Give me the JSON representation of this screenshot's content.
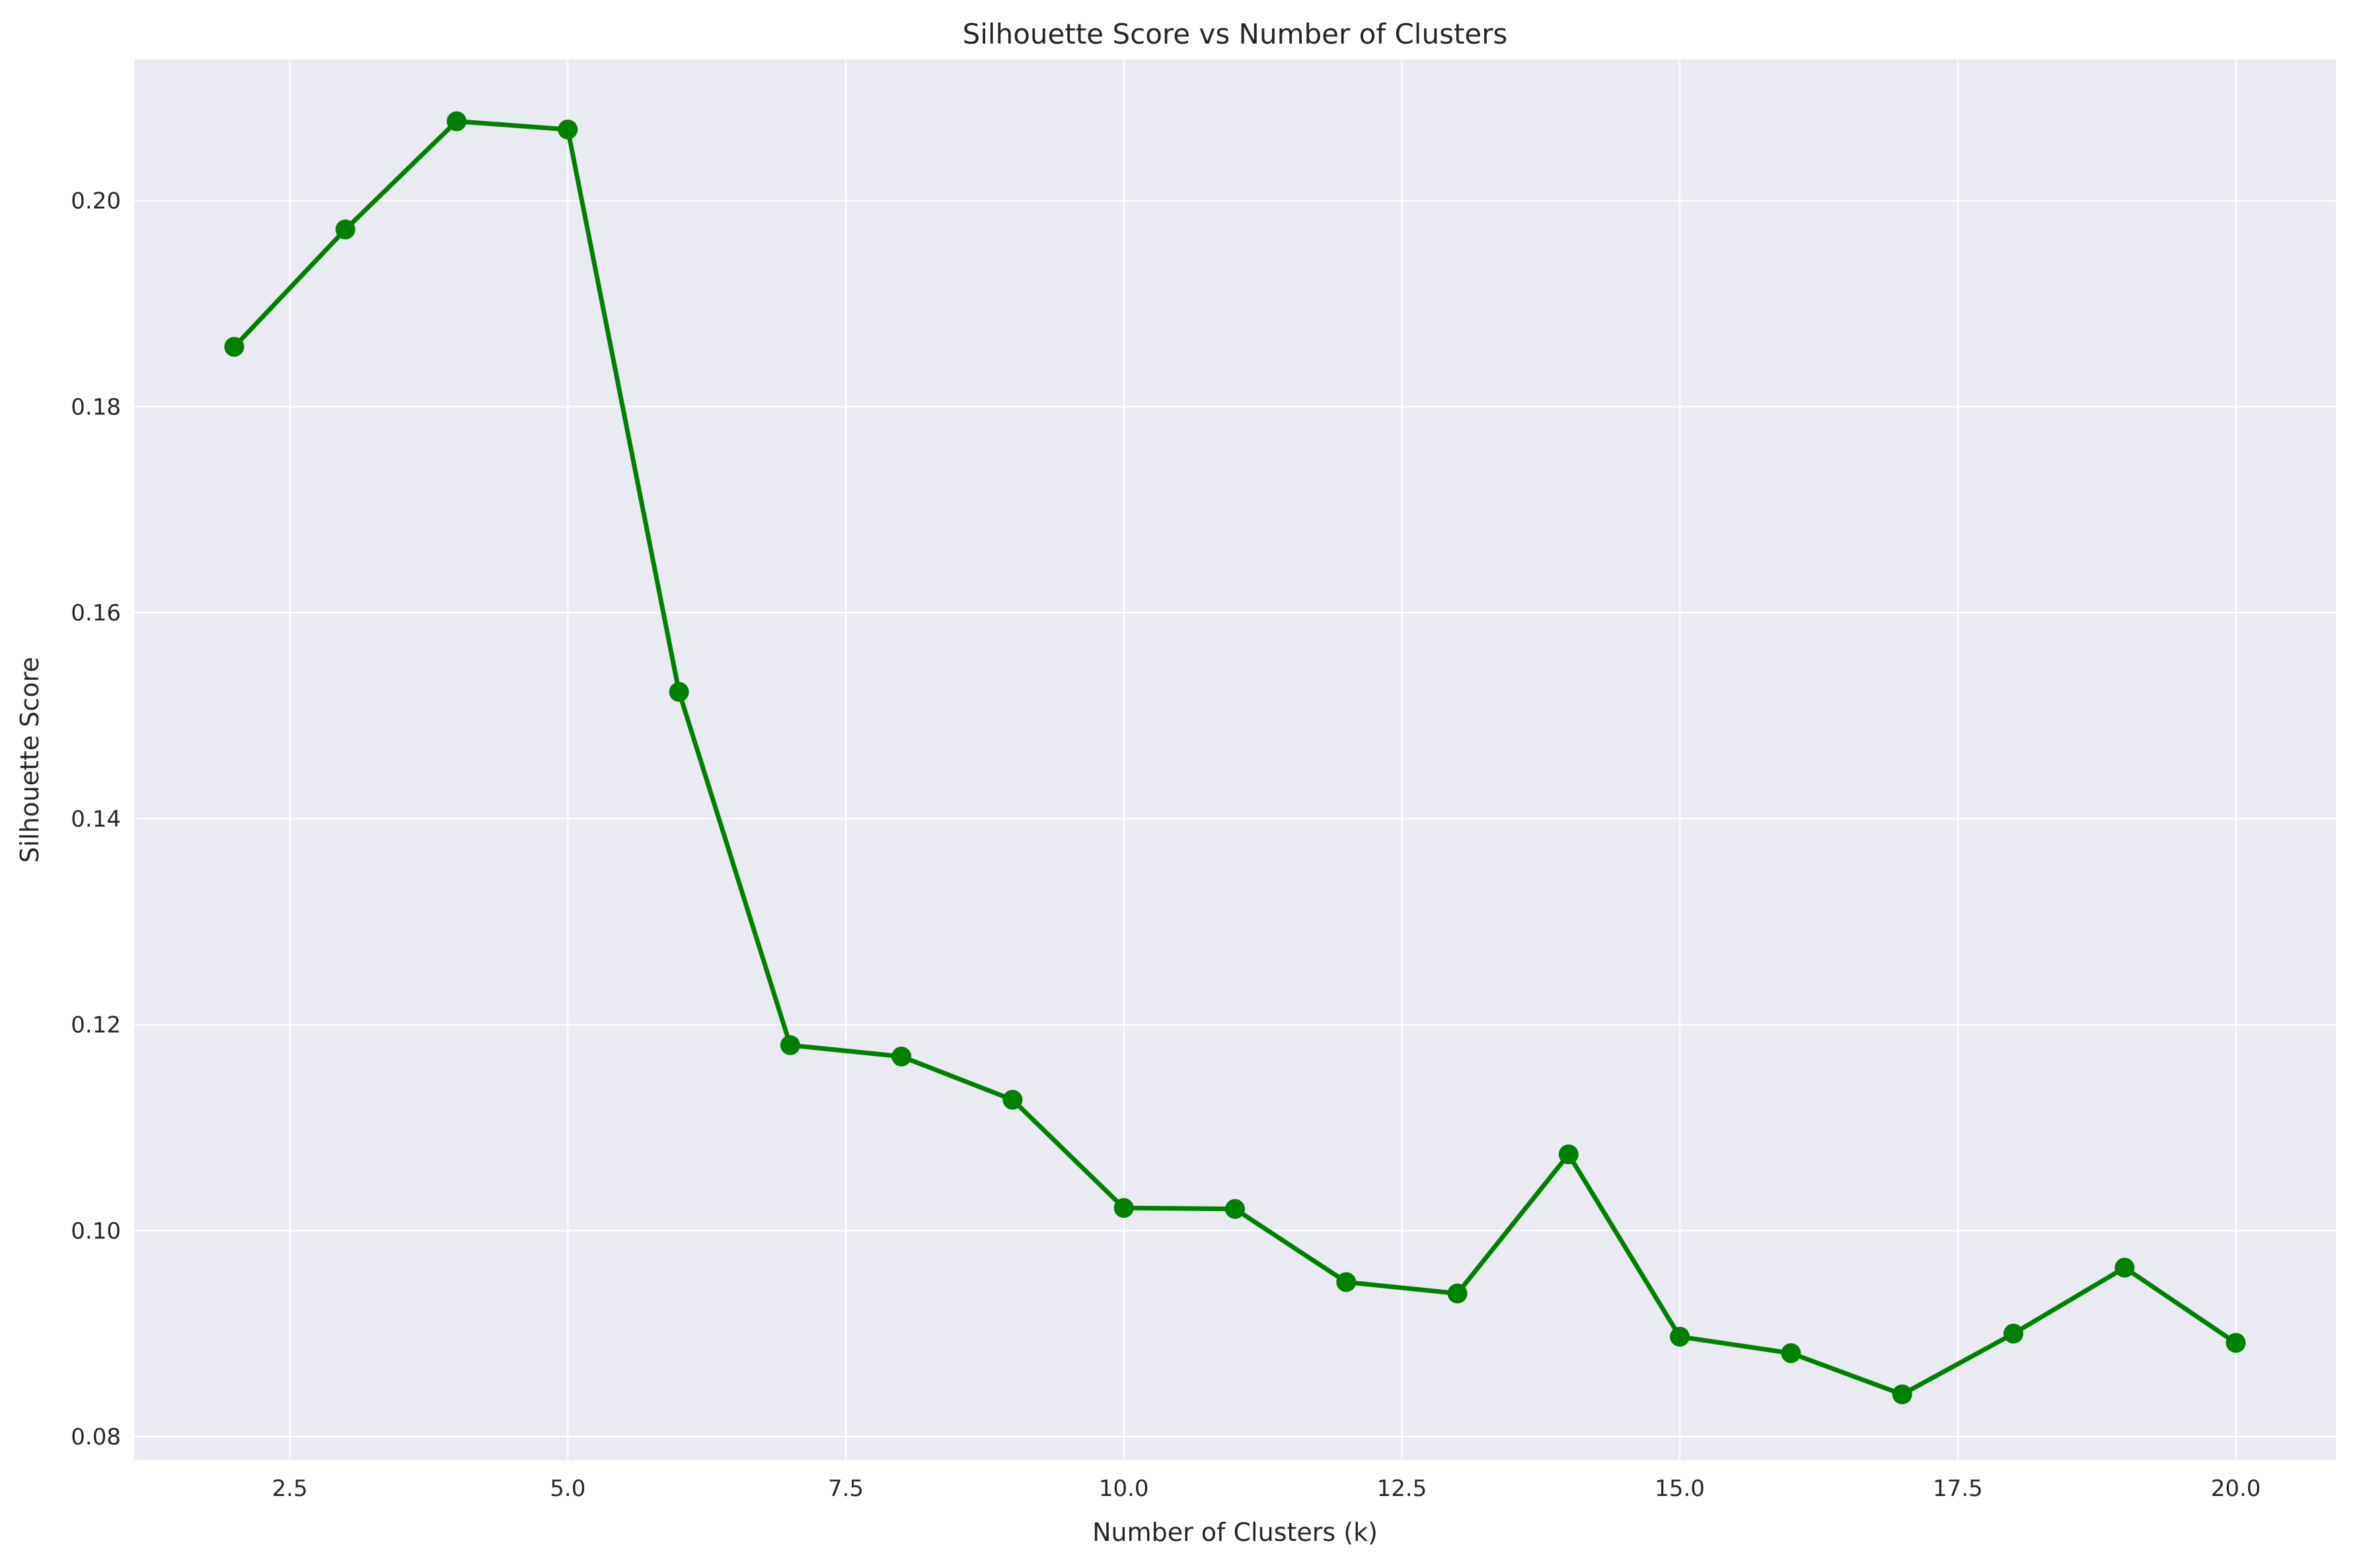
{
  "chart_data": {
    "type": "line",
    "title": "Silhouette Score vs Number of Clusters",
    "xlabel": "Number of Clusters (k)",
    "ylabel": "Silhouette Score",
    "xlim": [
      1.1,
      20.9
    ],
    "ylim": [
      0.0777,
      0.2137
    ],
    "xticks": [
      2.5,
      5.0,
      7.5,
      10.0,
      12.5,
      15.0,
      17.5,
      20.0
    ],
    "xtick_labels": [
      "2.5",
      "5.0",
      "7.5",
      "10.0",
      "12.5",
      "15.0",
      "17.5",
      "20.0"
    ],
    "yticks": [
      0.08,
      0.1,
      0.12,
      0.14,
      0.16,
      0.18,
      0.2
    ],
    "ytick_labels": [
      "0.08",
      "0.10",
      "0.12",
      "0.14",
      "0.16",
      "0.18",
      "0.20"
    ],
    "grid": true,
    "series": [
      {
        "color": "#008000",
        "marker": "circle",
        "x": [
          2,
          3,
          4,
          5,
          6,
          7,
          8,
          9,
          10,
          11,
          12,
          13,
          14,
          15,
          16,
          17,
          18,
          19,
          20
        ],
        "y": [
          0.1858,
          0.1972,
          0.2077,
          0.2069,
          0.1523,
          0.118,
          0.1169,
          0.1127,
          0.1022,
          0.1021,
          0.095,
          0.0939,
          0.1074,
          0.0897,
          0.0881,
          0.0841,
          0.09,
          0.0964,
          0.0891
        ]
      }
    ],
    "colors": {
      "plot_background": "#eaeaf2",
      "grid": "#ffffff",
      "line": "#008000"
    }
  }
}
